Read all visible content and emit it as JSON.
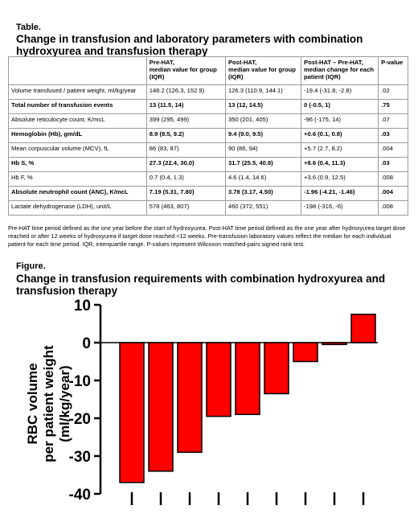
{
  "table": {
    "label": "Table.",
    "title": "Change in transfusion and laboratory parameters with combination hydroxyurea and transfusion therapy",
    "headers": [
      "",
      "Pre-HAT,\nmedian value for group (IQR)",
      "Post-HAT,\nmedian value for group (IQR)",
      "Post-HAT – Pre-HAT,\nmedian change for each patient (IQR)",
      "P-value"
    ],
    "rows": [
      {
        "bold": false,
        "cells": [
          "Volume transfused / patient weight, ml/kg/year",
          "146.2 (126.3, 152.9)",
          "126.3 (110.9, 144.1)",
          "-19.4 (-31.8, -2.8)",
          ".02"
        ]
      },
      {
        "bold": true,
        "cells": [
          "Total number of transfusion events",
          "13 (11.5, 14)",
          "13 (12, 14.5)",
          "0 (-0.5, 1)",
          ".75"
        ]
      },
      {
        "bold": false,
        "cells": [
          "Absolute reticulocyte count, K/mcL",
          "399 (295, 499)",
          "350 (201, 405)",
          "-96 (-175, 14)",
          ".07"
        ]
      },
      {
        "bold": true,
        "cells": [
          "Hemoglobin (Hb), gm/dL",
          "8.9 (8.5, 9.2)",
          "9.4 (9.0, 9.5)",
          "+0.6 (0.1, 0.8)",
          ".03"
        ]
      },
      {
        "bold": false,
        "cells": [
          "Mean corpuscular volume (MCV), fL",
          "86 (83, 87)",
          "90 (86, 94)",
          "+5.7 (2.7, 8.2)",
          ".004"
        ]
      },
      {
        "bold": true,
        "cells": [
          "Hb S, %",
          "27.3 (22.4, 30.0)",
          "31.7 (25.5, 40.8)",
          "+8.6 (0.4, 11.3)",
          ".03"
        ]
      },
      {
        "bold": false,
        "cells": [
          "Hb F, %",
          "0.7 (0.4, 1.3)",
          "4.6 (1.4, 14.6)",
          "+3.6 (0.9, 12.5)",
          ".008"
        ]
      },
      {
        "bold": true,
        "cells": [
          "Absolute neutrophil count (ANC), K/mcL",
          "7.19 (5.31, 7.80)",
          "3.78 (3.17, 4.50)",
          "-1.96 (-4.21, -1.46)",
          ".004"
        ]
      },
      {
        "bold": false,
        "cells": [
          "Lactate dehydrogenase (LDH), unit/L",
          "578 (463, 807)",
          "460 (372, 551)",
          "-198 (-316, -6)",
          ".008"
        ]
      }
    ],
    "footnote": "Pre-HAT time period defined as the one year before the start of hydroxyurea. Post-HAT time period defined as the one year after hydroxyurea target dose reached or after 12 weeks of hydroxyurea if target dose reached <12 weeks.    Pre-transfusion laboratory values reflect the median for each individual patient for each time period.  IQR, interquartile range. P-values represent Wilcoxon matched-pairs signed rank test."
  },
  "figure": {
    "label": "Figure.",
    "title": "Change in transfusion requirements with combination hydroxyurea and transfusion therapy"
  },
  "chart_data": {
    "type": "bar",
    "ylabel_line1": "RBC volume",
    "ylabel_line2": "per patient weight",
    "ylabel_line3": "(ml/kg/year)",
    "ylim": [
      -40,
      10
    ],
    "yticks": [
      10,
      0,
      -10,
      -20,
      -30,
      -40
    ],
    "values": [
      -37,
      -34,
      -29,
      -19.5,
      -19,
      -13.5,
      -5,
      -0.5,
      7.5
    ],
    "bar_color": "#ff0000",
    "grid": false
  }
}
